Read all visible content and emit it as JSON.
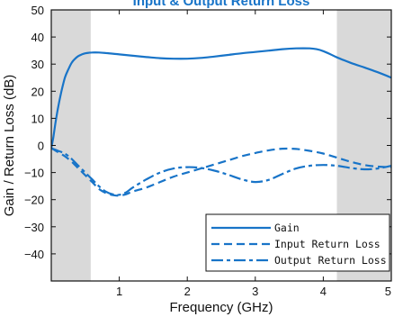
{
  "chart_data": {
    "type": "line",
    "title": "Input & Output Return Loss",
    "xlabel": "Frequency (GHz)",
    "ylabel": "Gain / Return Loss (dB)",
    "xlim": [
      0,
      5
    ],
    "ylim": [
      -50,
      50
    ],
    "xticks": [
      1,
      2,
      3,
      4,
      5
    ],
    "yticks": [
      50,
      40,
      30,
      20,
      10,
      0,
      -10,
      -20,
      -30,
      -40
    ],
    "shaded_regions": [
      [
        0,
        0.58
      ],
      [
        4.2,
        5
      ]
    ],
    "grid": false,
    "legend_position": "bottom-right",
    "colors": {
      "series": "#1874c8",
      "shade": "#d9d9d9",
      "axis": "#111111"
    },
    "series": [
      {
        "name": "Gain",
        "style": "solid",
        "x": [
          0,
          0.03,
          0.06,
          0.1,
          0.15,
          0.2,
          0.25,
          0.3,
          0.35,
          0.4,
          0.45,
          0.5,
          0.55,
          0.6,
          0.7,
          0.8,
          1.0,
          1.2,
          1.4,
          1.6,
          1.8,
          2.0,
          2.2,
          2.4,
          2.6,
          2.8,
          3.0,
          3.2,
          3.4,
          3.6,
          3.8,
          3.9,
          4.0,
          4.1,
          4.2,
          4.4,
          4.6,
          4.8,
          5.0
        ],
        "y": [
          -1,
          3,
          8,
          14,
          20,
          25,
          28,
          30.5,
          32,
          33,
          33.6,
          34,
          34.2,
          34.3,
          34.3,
          34.1,
          33.6,
          33.1,
          32.6,
          32.2,
          32.0,
          32.0,
          32.3,
          32.8,
          33.4,
          34.0,
          34.5,
          35.0,
          35.5,
          35.8,
          35.8,
          35.5,
          34.8,
          33.7,
          32.5,
          30.5,
          28.8,
          27.0,
          25.0
        ]
      },
      {
        "name": "Input Return Loss",
        "style": "dashed",
        "x": [
          0,
          0.1,
          0.2,
          0.3,
          0.4,
          0.5,
          0.6,
          0.7,
          0.8,
          0.9,
          1.0,
          1.1,
          1.2,
          1.4,
          1.6,
          1.8,
          2.0,
          2.2,
          2.4,
          2.6,
          2.8,
          3.0,
          3.2,
          3.4,
          3.6,
          3.8,
          4.0,
          4.2,
          4.4,
          4.6,
          4.8,
          5.0
        ],
        "y": [
          -1,
          -2.5,
          -4,
          -6,
          -8.5,
          -11,
          -13.5,
          -16,
          -17.5,
          -18.3,
          -18.5,
          -18,
          -17,
          -15.5,
          -13.5,
          -11.5,
          -10,
          -8.5,
          -7,
          -5.5,
          -4,
          -2.8,
          -1.8,
          -1.2,
          -1.3,
          -2,
          -3,
          -4.5,
          -6,
          -7.2,
          -7.8,
          -8
        ]
      },
      {
        "name": "Output Return Loss",
        "style": "dashdot",
        "x": [
          0,
          0.1,
          0.2,
          0.3,
          0.4,
          0.5,
          0.6,
          0.7,
          0.8,
          0.9,
          1.0,
          1.1,
          1.2,
          1.4,
          1.6,
          1.8,
          2.0,
          2.2,
          2.4,
          2.6,
          2.8,
          3.0,
          3.2,
          3.4,
          3.6,
          3.8,
          4.0,
          4.2,
          4.4,
          4.6,
          4.8,
          5.0
        ],
        "y": [
          -1,
          -2,
          -3,
          -5,
          -7.5,
          -10,
          -12.5,
          -15,
          -17,
          -18,
          -18.2,
          -17.3,
          -15.5,
          -12.5,
          -10,
          -8.5,
          -8,
          -8.3,
          -9.3,
          -10.8,
          -12.5,
          -13.5,
          -12.7,
          -10.5,
          -8.5,
          -7.5,
          -7.2,
          -7.5,
          -8.3,
          -8.8,
          -8.5,
          -7.5
        ]
      }
    ]
  }
}
